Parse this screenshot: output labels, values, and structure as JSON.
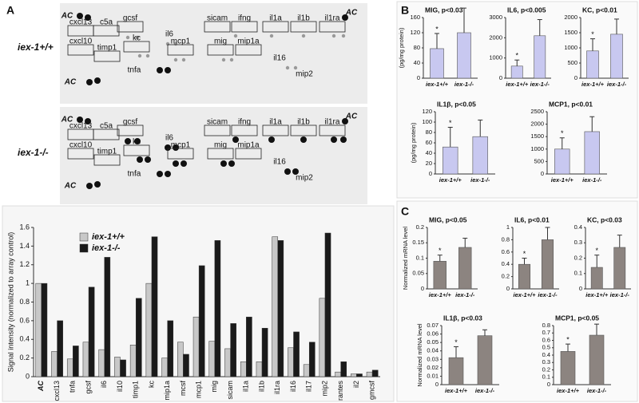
{
  "panels": [
    "A",
    "B",
    "C"
  ],
  "arrays": {
    "genotypes": [
      "iex-1+/+",
      "iex-1-/-"
    ],
    "labels": [
      "AC",
      "cxcl13",
      "c5a",
      "gcsf",
      "il6",
      "sicam",
      "ifng",
      "il1a",
      "il1b",
      "il1ra",
      "AC",
      "cxcl10",
      "timp1",
      "kc",
      "mcp1",
      "mig",
      "mip1a",
      "il16",
      "tnfa",
      "mip2",
      "AC"
    ]
  },
  "chart_data": [
    {
      "type": "bar",
      "y_label": "Signal intensity (normalized to array control)",
      "categories": [
        "AC",
        "cxcl13",
        "tnfa",
        "gcsf",
        "il6",
        "il10",
        "timp1",
        "kc",
        "mip1a",
        "mcsf",
        "mcp1",
        "mig",
        "sicam",
        "il1a",
        "il1b",
        "il1ra",
        "il16",
        "il17",
        "mip2",
        "rantes",
        "il2",
        "gmcsf"
      ],
      "series": [
        {
          "name": "iex-1+/+",
          "color": "#c8c8c8",
          "values": [
            1,
            0.27,
            0.19,
            0.37,
            0.29,
            0.21,
            0.34,
            1.0,
            0.2,
            0.37,
            0.64,
            0.38,
            0.3,
            0.16,
            0.16,
            1.5,
            0.31,
            0.13,
            0.84,
            0.05,
            0.03,
            0.05
          ]
        },
        {
          "name": "iex-1-/-",
          "color": "#1a1a1a",
          "values": [
            1,
            0.6,
            0.33,
            0.96,
            1.28,
            0.18,
            0.84,
            1.5,
            0.6,
            0.24,
            1.19,
            1.46,
            0.57,
            0.64,
            0.52,
            1.46,
            0.48,
            0.37,
            1.54,
            0.16,
            0.03,
            0.07
          ]
        }
      ],
      "ylim": [
        0,
        1.6
      ],
      "yticks": [
        0,
        0.2,
        0.4,
        0.6,
        0.8,
        1,
        1.2,
        1.4,
        1.6
      ],
      "legend": "upper-left"
    },
    {
      "type": "errbar",
      "title": "MIG, p<0.03",
      "y_label": "(pg/mg protein)",
      "categories": [
        "iex-1+/+",
        "iex-1-/-"
      ],
      "values": [
        78,
        120
      ],
      "errors": [
        40,
        65
      ],
      "color": "#c8c8f0",
      "annotation": "*",
      "ylim": [
        0,
        160
      ],
      "yticks": [
        0,
        40,
        80,
        120,
        160
      ]
    },
    {
      "type": "errbar",
      "title": "IL6, p<0.005",
      "categories": [
        "iex-1+/+",
        "iex-1-/-"
      ],
      "values": [
        600,
        2100
      ],
      "errors": [
        300,
        800
      ],
      "color": "#c8c8f0",
      "annotation": "*",
      "ylim": [
        0,
        3000
      ],
      "yticks": [
        0,
        1000,
        2000,
        3000
      ]
    },
    {
      "type": "errbar",
      "title": "KC, p<0.01",
      "categories": [
        "iex-1+/+",
        "iex-1-/-"
      ],
      "values": [
        900,
        1450
      ],
      "errors": [
        400,
        500
      ],
      "color": "#c8c8f0",
      "annotation": "*",
      "ylim": [
        0,
        2000
      ],
      "yticks": [
        0,
        500,
        1000,
        1500,
        2000
      ]
    },
    {
      "type": "errbar",
      "title": "IL1β, p<0.05",
      "y_label": "(pg/mg protein)",
      "categories": [
        "iex-1+/+",
        "iex-1-/-"
      ],
      "values": [
        52,
        72
      ],
      "errors": [
        38,
        32
      ],
      "color": "#c8c8f0",
      "annotation": "*",
      "ylim": [
        0,
        120
      ],
      "yticks": [
        0,
        20,
        40,
        60,
        80,
        100,
        120
      ]
    },
    {
      "type": "errbar",
      "title": "MCP1, p<0.01",
      "categories": [
        "iex-1+/+",
        "iex-1-/-"
      ],
      "values": [
        1000,
        1700
      ],
      "errors": [
        450,
        600
      ],
      "color": "#c8c8f0",
      "annotation": "*",
      "ylim": [
        0,
        2500
      ],
      "yticks": [
        0,
        500,
        1000,
        1500,
        2000,
        2500
      ]
    },
    {
      "type": "errbar",
      "title": "MIG, p<0.05",
      "y_label": "Normalized mRNA level",
      "categories": [
        "iex-1+/+",
        "iex-1-/-"
      ],
      "values": [
        0.09,
        0.135
      ],
      "errors": [
        0.02,
        0.03
      ],
      "color": "#8c8480",
      "annotation": "*",
      "ylim": [
        0,
        0.2
      ],
      "yticks": [
        0,
        0.05,
        0.1,
        0.15,
        0.2
      ]
    },
    {
      "type": "errbar",
      "title": "IL6, p<0.01",
      "categories": [
        "iex-1+/+",
        "iex-1-/-"
      ],
      "values": [
        0.4,
        0.8
      ],
      "errors": [
        0.1,
        0.2
      ],
      "color": "#8c8480",
      "annotation": "*",
      "ylim": [
        0,
        1
      ],
      "yticks": [
        0,
        0.2,
        0.4,
        0.6,
        0.8,
        1
      ]
    },
    {
      "type": "errbar",
      "title": "KC, p<0.03",
      "categories": [
        "iex-1+/+",
        "iex-1-/-"
      ],
      "values": [
        0.14,
        0.27
      ],
      "errors": [
        0.08,
        0.08
      ],
      "color": "#8c8480",
      "annotation": "*",
      "ylim": [
        0,
        0.4
      ],
      "yticks": [
        0,
        0.1,
        0.2,
        0.3,
        0.4
      ]
    },
    {
      "type": "errbar",
      "title": "IL1β, p<0.03",
      "y_label": "Normalized mRNA level",
      "categories": [
        "iex-1+/+",
        "iex-1-/-"
      ],
      "values": [
        0.032,
        0.058
      ],
      "errors": [
        0.013,
        0.007
      ],
      "color": "#8c8480",
      "annotation": "*",
      "ylim": [
        0,
        0.07
      ],
      "yticks": [
        0,
        0.01,
        0.02,
        0.03,
        0.04,
        0.05,
        0.06,
        0.07
      ]
    },
    {
      "type": "errbar",
      "title": "MCP1, p<0.05",
      "categories": [
        "iex-1+/+",
        "iex-1-/-"
      ],
      "values": [
        0.45,
        0.67
      ],
      "errors": [
        0.1,
        0.15
      ],
      "color": "#8c8480",
      "annotation": "*",
      "ylim": [
        0,
        0.8
      ],
      "yticks": [
        0,
        0.1,
        0.2,
        0.3,
        0.4,
        0.5,
        0.6,
        0.7,
        0.8
      ]
    }
  ]
}
